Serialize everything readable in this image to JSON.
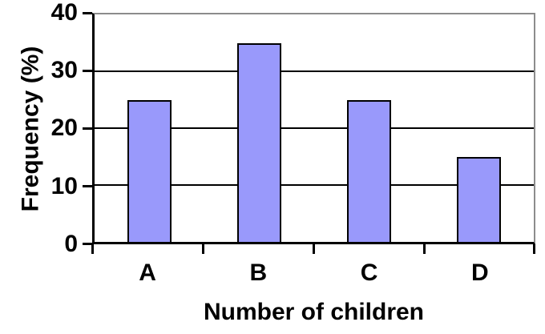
{
  "chart_data": {
    "type": "bar",
    "categories": [
      "A",
      "B",
      "C",
      "D"
    ],
    "values": [
      25,
      35,
      25,
      15
    ],
    "title": "",
    "xlabel": "Number of children",
    "ylabel": "Frequency (%)",
    "ylim": [
      0,
      40
    ],
    "yticks": [
      40,
      30,
      20,
      10,
      0
    ],
    "ytick_step": 10,
    "grid": "horizontal-on",
    "legend": "none",
    "series_name": "",
    "bar_fill_color": "#9999fb",
    "bar_border_color": "#000000",
    "gridline_color": "#000000",
    "frame_color": "#8c8c8c",
    "axis_color": "#000000",
    "background_color": "#ffffff"
  }
}
